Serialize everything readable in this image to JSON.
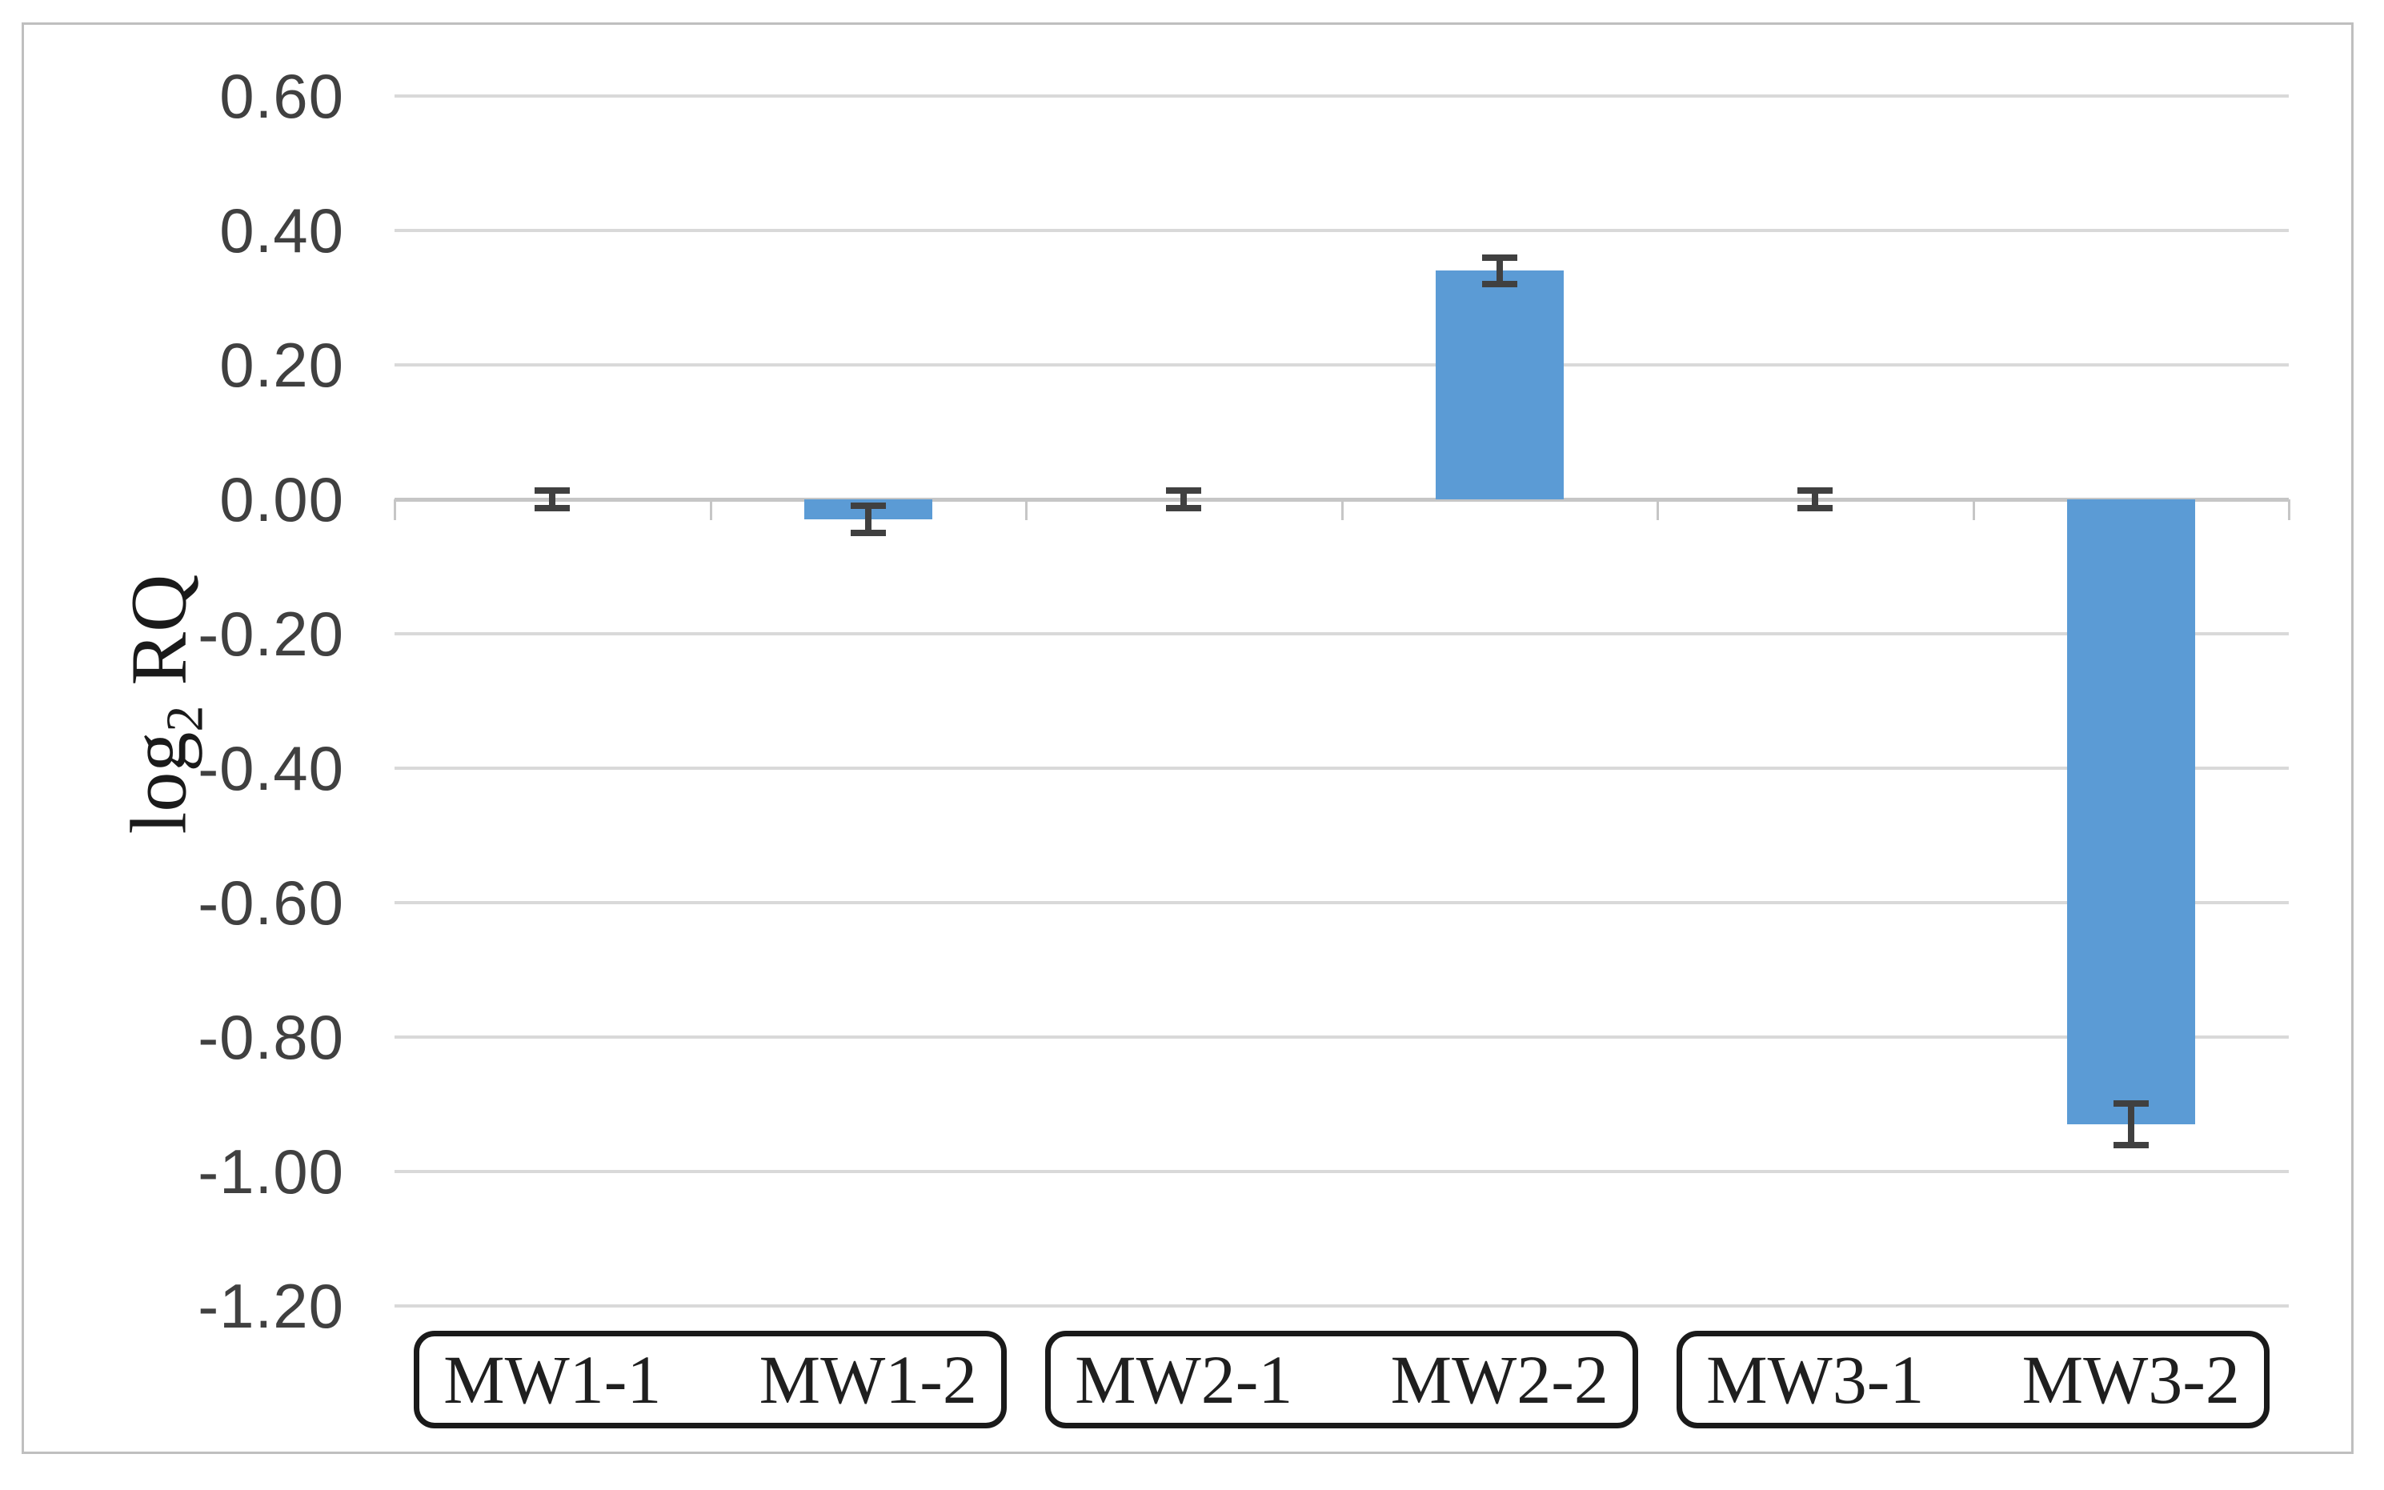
{
  "figure": {
    "background_color": "#ffffff",
    "border_color": "#bfbfbf",
    "gridline_color": "#d9d9d9",
    "axis_line_color": "#c6c6c6",
    "tick_label_color": "#404040",
    "category_label_color": "#1f1f1f"
  },
  "chart_data": {
    "type": "bar",
    "title": "",
    "xlabel": "",
    "ylabel": "log2 RQ",
    "ylabel_parts": {
      "base": "log",
      "sub": "2",
      "rest": " RQ"
    },
    "categories": [
      "MW1-1",
      "MW1-2",
      "MW2-1",
      "MW2-2",
      "MW3-1",
      "MW3-2"
    ],
    "values": [
      0.0,
      -0.03,
      0.0,
      0.34,
      0.0,
      -0.93
    ],
    "error_bars": [
      0.013,
      0.02,
      0.013,
      0.02,
      0.013,
      0.031
    ],
    "category_groups": [
      [
        "MW1-1",
        "MW1-2"
      ],
      [
        "MW2-1",
        "MW2-2"
      ],
      [
        "MW3-1",
        "MW3-2"
      ]
    ],
    "y_axis": {
      "min": -1.2,
      "max": 0.6,
      "step": 0.2,
      "tick_values": [
        0.6,
        0.4,
        0.2,
        0.0,
        -0.2,
        -0.4,
        -0.6,
        -0.8,
        -1.0,
        -1.2
      ],
      "tick_labels": [
        "0.60",
        "0.40",
        "0.20",
        "0.00",
        "-0.20",
        "-0.40",
        "-0.60",
        "-0.80",
        "-1.00",
        "-1.20"
      ]
    },
    "grid": true,
    "legend": false,
    "bar_color": "#5b9bd5",
    "error_bar_color": "#404040"
  }
}
